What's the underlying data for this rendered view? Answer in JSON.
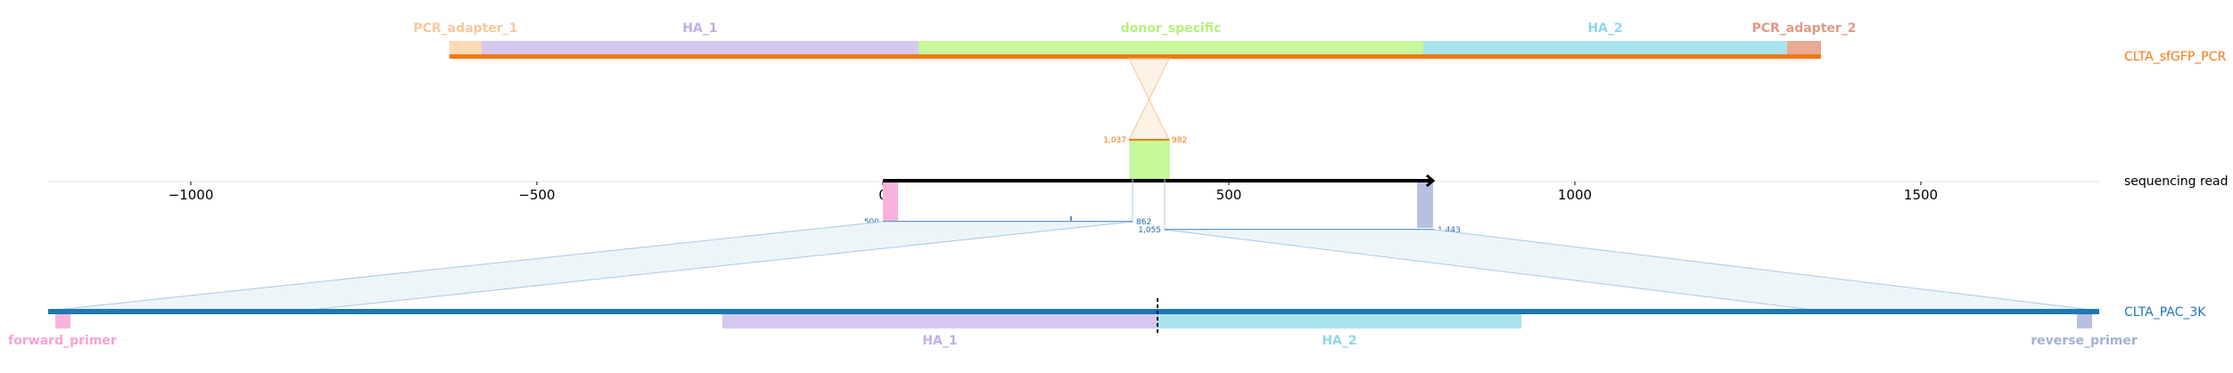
{
  "top_track": {
    "name": "CLTA_sfGFP_PCR",
    "color": "#f07a10",
    "features": [
      {
        "label": "PCR_adapter_1",
        "color": "#fdd9b5",
        "label_color": "#f8c89b"
      },
      {
        "label": "HA_1",
        "color": "#d6c8ef",
        "label_color": "#c3aee6"
      },
      {
        "label": "donor_specific",
        "color": "#c7f89a",
        "label_color": "#b6f07a"
      },
      {
        "label": "HA_2",
        "color": "#a9e3ee",
        "label_color": "#8fd6e6"
      },
      {
        "label": "PCR_adapter_2",
        "color": "#eaa993",
        "label_color": "#e09a85"
      }
    ]
  },
  "read_track": {
    "name": "sequencing read",
    "axis_ticks": [
      "−1000",
      "−500",
      "0",
      "500",
      "1000",
      "1500"
    ],
    "axis_tick_values": [
      -1000,
      -500,
      0,
      500,
      1000,
      1500
    ],
    "axis_range": [
      -1210,
      1750
    ],
    "read_range": [
      0,
      795
    ],
    "donor_block": {
      "start": 357,
      "end": 414,
      "color": "#c7f89a"
    },
    "forward_block": {
      "start": 0,
      "end": 22,
      "color": "#f9b3dc"
    },
    "reverse_block": {
      "start": 772,
      "end": 795,
      "color": "#b6c0e0"
    },
    "top_marks": [
      {
        "label": "1,037",
        "color": "#f07a10"
      },
      {
        "label": "982",
        "color": "#f07a10"
      }
    ],
    "alignments": [
      {
        "start_label": "500",
        "end_label": "862",
        "color": "#1f6fb4"
      },
      {
        "start_label": "1,055",
        "end_label": "1,443",
        "color": "#1f6fb4"
      }
    ]
  },
  "bottom_track": {
    "name": "CLTA_PAC_3K",
    "color": "#1f77b4",
    "features": [
      {
        "label": "forward_primer",
        "color": "#f9b3dc",
        "label_color": "#f7a3d3"
      },
      {
        "label": "HA_1",
        "color": "#d6c8ef",
        "label_color": "#c3aee6"
      },
      {
        "label": "HA_2",
        "color": "#a9e3ee",
        "label_color": "#8fd6e6"
      },
      {
        "label": "reverse_primer",
        "color": "#b6c0e0",
        "label_color": "#a3b0d8"
      }
    ]
  },
  "colors": {
    "connector_fill": "#eef5f9",
    "connector_stroke": "#a9c8e6",
    "top_connector_fill": "#fdf2e6",
    "top_connector_stroke": "#f7c594",
    "cut_site": "#000000"
  }
}
